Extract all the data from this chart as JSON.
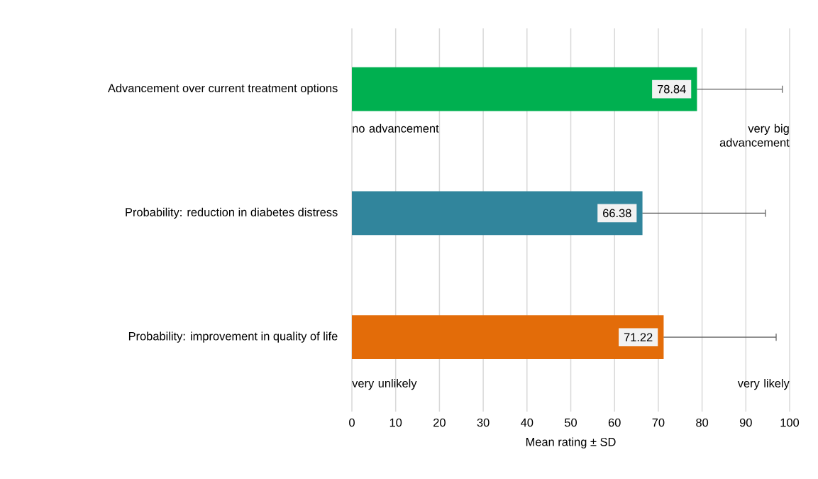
{
  "chart_data": {
    "type": "bar",
    "orientation": "horizontal",
    "xlabel": "Mean rating ± SD",
    "categories": [
      "Advancement over current treatment options",
      "Probability: reduction in diabetes distress",
      "Probability: improvement in quality of life"
    ],
    "values": [
      78.84,
      66.38,
      71.22
    ],
    "errors": [
      19.5,
      28.1,
      25.7
    ],
    "value_labels": [
      "78.84",
      "66.38",
      "71.22"
    ],
    "colors": [
      "#00b050",
      "#31859c",
      "#e36c09"
    ],
    "xlim": [
      0,
      100
    ],
    "xticks": [
      0,
      10,
      20,
      30,
      40,
      50,
      60,
      70,
      80,
      90,
      100
    ],
    "grid": "x",
    "annotations": [
      "no advancement",
      "very big advancement",
      "very unlikely",
      "very likely"
    ]
  }
}
